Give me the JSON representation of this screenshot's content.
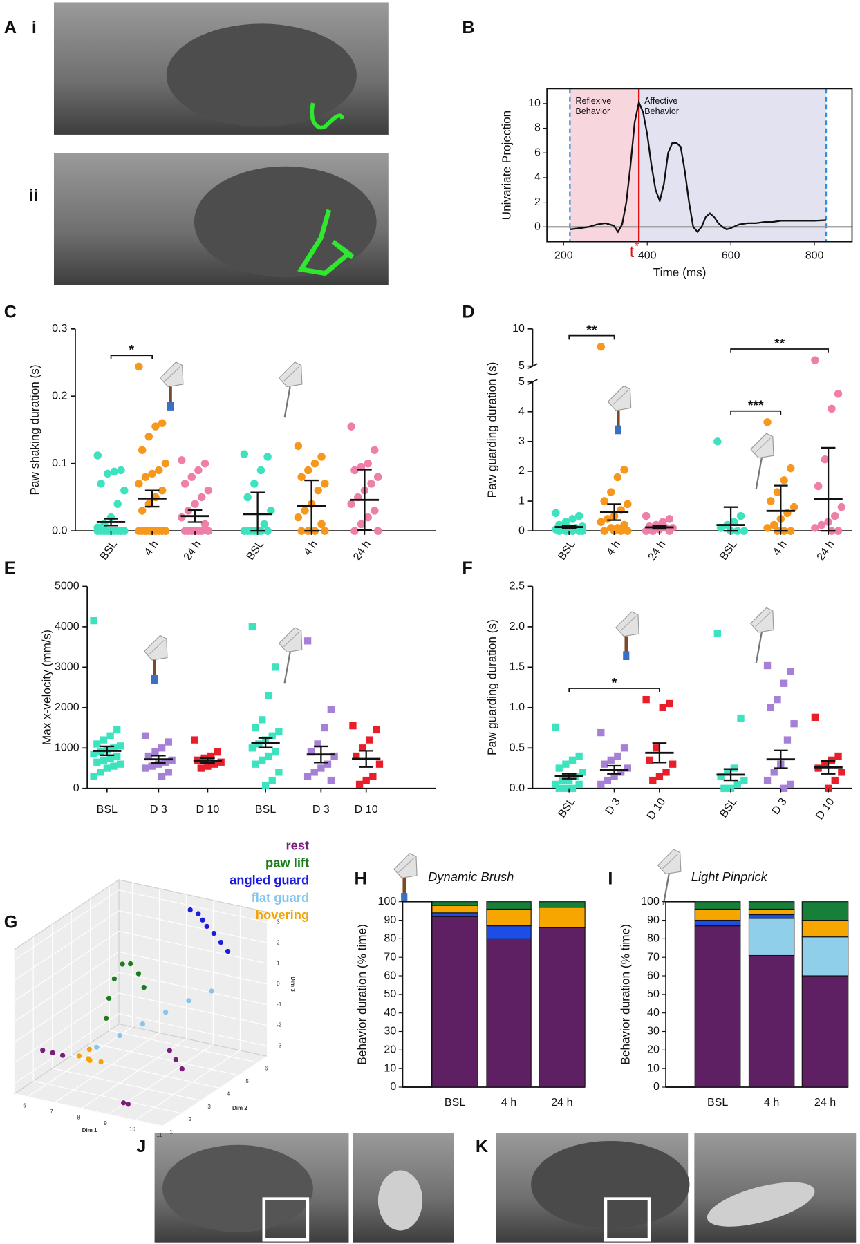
{
  "panel_labels": [
    "A",
    "i",
    "ii",
    "B",
    "C",
    "D",
    "E",
    "F",
    "G",
    "H",
    "I",
    "J",
    "K"
  ],
  "chart_data": [
    {
      "type": "line",
      "ylabel": "Univariate Projection",
      "xlabel": "Time (ms)",
      "xlim": [
        160,
        890
      ],
      "xticks": [
        200,
        400,
        600,
        800
      ],
      "ylim": [
        -1.2,
        11.2
      ],
      "yticks": [
        0,
        2,
        4,
        6,
        8,
        10
      ],
      "color": "#111111",
      "zero_line": true,
      "regions": [
        {
          "lines": [
            "Reflexive",
            "Behavior"
          ],
          "from": 215,
          "to": 380,
          "color": "#f8d6de"
        },
        {
          "lines": [
            "Affective",
            "Behavior"
          ],
          "from": 380,
          "to": 828,
          "color": "#e2e2f1"
        }
      ],
      "marker_line": {
        "x": 380,
        "label": "t",
        "superscript": "*",
        "color": "#e01010"
      },
      "x": [
        215,
        240,
        260,
        280,
        300,
        320,
        330,
        340,
        350,
        360,
        370,
        380,
        390,
        400,
        410,
        420,
        430,
        440,
        450,
        460,
        470,
        480,
        490,
        500,
        510,
        520,
        530,
        540,
        550,
        560,
        570,
        580,
        590,
        600,
        620,
        640,
        660,
        680,
        700,
        720,
        740,
        760,
        780,
        800,
        828
      ],
      "values": [
        -0.2,
        -0.1,
        0,
        0.2,
        0.3,
        0.1,
        -0.4,
        0.2,
        2,
        5,
        8.5,
        10.1,
        9.3,
        7.5,
        5,
        3,
        2.1,
        3.5,
        6,
        6.8,
        6.8,
        6.5,
        4.5,
        2,
        0,
        -0.4,
        0,
        0.8,
        1.1,
        0.8,
        0.3,
        0,
        -0.2,
        -0.1,
        0.2,
        0.3,
        0.3,
        0.4,
        0.4,
        0.5,
        0.5,
        0.5,
        0.5,
        0.5,
        0.55
      ]
    },
    {
      "type": "strip",
      "ylabel": "Paw shaking duration (s)",
      "marker": "circle",
      "ylim": [
        0,
        0.3
      ],
      "yticks": [
        {
          "value": 0,
          "label": "0.0"
        },
        {
          "value": 0.1,
          "label": "0.1"
        },
        {
          "value": 0.2,
          "label": "0.2"
        },
        {
          "value": 0.3,
          "label": "0.3"
        }
      ],
      "groups": [
        {
          "label": "BSL",
          "color": "#3de3bf",
          "mean": 0.013,
          "error": 0.005,
          "values": [
            0.112,
            0.09,
            0.088,
            0.085,
            0.07,
            0.06,
            0.04,
            0.02,
            0.01,
            0.005,
            0,
            0,
            0,
            0,
            0,
            0,
            0,
            0,
            0,
            0
          ]
        },
        {
          "label": "4 h",
          "color": "#f7981c",
          "mean": 0.048,
          "error": 0.012,
          "values": [
            0.244,
            0.16,
            0.155,
            0.14,
            0.12,
            0.1,
            0.09,
            0.085,
            0.08,
            0.07,
            0.06,
            0.05,
            0.04,
            0.03,
            0,
            0,
            0,
            0,
            0,
            0,
            0,
            0,
            0,
            0
          ]
        },
        {
          "label": "24 h",
          "color": "#ee7fa9",
          "mean": 0.022,
          "error": 0.009,
          "values": [
            0.105,
            0.1,
            0.09,
            0.08,
            0.07,
            0.06,
            0.05,
            0.04,
            0.03,
            0.02,
            0.01,
            0,
            0,
            0,
            0,
            0,
            0,
            0
          ]
        },
        {
          "label": "BSL",
          "color": "#3de3bf",
          "mean": 0.025,
          "error": 0.032,
          "values": [
            0.114,
            0.11,
            0.09,
            0.07,
            0.05,
            0.03,
            0.01,
            0,
            0,
            0,
            0,
            0,
            0,
            0
          ]
        },
        {
          "label": "4 h",
          "color": "#f7981c",
          "mean": 0.037,
          "error": 0.038,
          "values": [
            0.126,
            0.11,
            0.1,
            0.09,
            0.08,
            0.07,
            0.06,
            0.04,
            0.03,
            0.02,
            0.01,
            0,
            0,
            0,
            0
          ]
        },
        {
          "label": "24 h",
          "color": "#ee7fa9",
          "mean": 0.046,
          "error": 0.045,
          "values": [
            0.155,
            0.12,
            0.1,
            0.095,
            0.09,
            0.08,
            0.07,
            0.06,
            0.05,
            0.04,
            0.03,
            0.02,
            0.01,
            0,
            0
          ]
        }
      ],
      "significance": [
        {
          "label": "*",
          "from": 0,
          "to": 1
        }
      ]
    },
    {
      "type": "strip",
      "ylabel": "Paw guarding duration (s)",
      "marker": "circle",
      "ylim": [
        0,
        5
      ],
      "yticks": [
        0,
        1,
        2,
        3,
        4,
        5
      ],
      "ylim_upper": [
        5,
        10
      ],
      "yticks_upper": [
        5,
        10
      ],
      "groups": [
        {
          "label": "BSL",
          "color": "#3de3bf",
          "mean": 0.13,
          "error": 0.04,
          "values": [
            0.6,
            0.5,
            0.4,
            0.3,
            0.2,
            0.15,
            0.1,
            0.1,
            0.05,
            0.05,
            0,
            0,
            0,
            0,
            0
          ]
        },
        {
          "label": "4 h",
          "color": "#f7981c",
          "mean": 0.63,
          "error": 0.27,
          "values": [
            7.6,
            2.05,
            1.8,
            1.3,
            1,
            0.9,
            0.7,
            0.5,
            0.4,
            0.3,
            0.2,
            0.1,
            0.1,
            0,
            0,
            0,
            0
          ]
        },
        {
          "label": "24 h",
          "color": "#ee7fa9",
          "mean": 0.12,
          "error": 0.05,
          "values": [
            0.5,
            0.4,
            0.3,
            0.2,
            0.15,
            0.1,
            0.1,
            0.05,
            0,
            0,
            0
          ]
        },
        {
          "label": "BSL",
          "color": "#3de3bf",
          "mean": 0.2,
          "error": 0.6,
          "values": [
            3,
            0.5,
            0.3,
            0.2,
            0.1,
            0,
            0,
            0
          ]
        },
        {
          "label": "4 h",
          "color": "#f7981c",
          "mean": 0.67,
          "error": 0.85,
          "values": [
            3.65,
            2.1,
            1.7,
            1.3,
            1,
            0.8,
            0.6,
            0.4,
            0.2,
            0.1,
            0,
            0,
            0
          ]
        },
        {
          "label": "24 h",
          "color": "#ee7fa9",
          "mean": 1.07,
          "error": 1.72,
          "values": [
            5.8,
            4.6,
            4.1,
            2.4,
            1.5,
            0.8,
            0.5,
            0.3,
            0.2,
            0.1,
            0,
            0
          ]
        }
      ],
      "significance": [
        {
          "label": "**",
          "from": 0,
          "to": 1
        },
        {
          "label": "***",
          "from": 3,
          "to": 4
        },
        {
          "label": "**",
          "from": 3,
          "to": 5
        }
      ]
    },
    {
      "type": "strip",
      "ylabel": "Max x-velocity (mm/s)",
      "marker": "square",
      "ylim": [
        0,
        5000
      ],
      "yticks": [
        0,
        1000,
        2000,
        3000,
        4000,
        5000
      ],
      "groups": [
        {
          "label": "BSL",
          "color": "#3de3bf",
          "mean": 930,
          "error": 110,
          "values": [
            4150,
            1450,
            1300,
            1200,
            1100,
            1050,
            1000,
            950,
            900,
            850,
            800,
            750,
            700,
            650,
            600,
            550,
            500,
            400,
            300
          ]
        },
        {
          "label": "D 3",
          "color": "#a67fd6",
          "mean": 720,
          "error": 90,
          "values": [
            1300,
            1150,
            1000,
            900,
            800,
            700,
            650,
            600,
            550,
            500,
            400,
            300
          ]
        },
        {
          "label": "D 10",
          "color": "#e81e2a",
          "mean": 690,
          "error": 60,
          "values": [
            1200,
            900,
            800,
            750,
            700,
            650,
            600,
            550,
            500
          ]
        },
        {
          "label": "BSL",
          "color": "#3de3bf",
          "mean": 1130,
          "error": 120,
          "values": [
            4000,
            3000,
            2300,
            1700,
            1500,
            1400,
            1300,
            1200,
            1100,
            1000,
            900,
            800,
            700,
            600,
            400,
            200,
            80
          ]
        },
        {
          "label": "D 3",
          "color": "#a67fd6",
          "mean": 840,
          "error": 200,
          "values": [
            3650,
            1950,
            1500,
            1100,
            900,
            800,
            600,
            500,
            400,
            300,
            200
          ]
        },
        {
          "label": "D 10",
          "color": "#e81e2a",
          "mean": 730,
          "error": 200,
          "values": [
            1550,
            1450,
            1200,
            1000,
            800,
            600,
            300,
            200,
            100
          ]
        }
      ],
      "significance": []
    },
    {
      "type": "strip",
      "ylabel": "Paw guarding duration (s)",
      "marker": "square",
      "ylim": [
        0,
        2.5
      ],
      "yticks": [
        {
          "value": 0,
          "label": "0.0"
        },
        {
          "value": 0.5,
          "label": "0.5"
        },
        {
          "value": 1,
          "label": "1.0"
        },
        {
          "value": 1.5,
          "label": "1.5"
        },
        {
          "value": 2,
          "label": "2.0"
        },
        {
          "value": 2.5,
          "label": "2.5"
        }
      ],
      "groups": [
        {
          "label": "BSL",
          "color": "#3de3bf",
          "mean": 0.15,
          "error": 0.03,
          "values": [
            0.76,
            0.4,
            0.35,
            0.3,
            0.25,
            0.2,
            0.15,
            0.1,
            0.1,
            0.05,
            0.05,
            0,
            0,
            0
          ]
        },
        {
          "label": "D 3",
          "color": "#a67fd6",
          "mean": 0.23,
          "error": 0.05,
          "values": [
            0.69,
            0.5,
            0.4,
            0.35,
            0.3,
            0.25,
            0.2,
            0.15,
            0.1,
            0.05
          ]
        },
        {
          "label": "D 10",
          "color": "#e81e2a",
          "mean": 0.44,
          "error": 0.12,
          "values": [
            1.1,
            1.05,
            1,
            0.5,
            0.35,
            0.3,
            0.2,
            0.15,
            0.1
          ]
        },
        {
          "label": "BSL",
          "color": "#3de3bf",
          "mean": 0.17,
          "error": 0.07,
          "values": [
            1.92,
            0.87,
            0.25,
            0.2,
            0.15,
            0.1,
            0.05,
            0,
            0
          ]
        },
        {
          "label": "D 3",
          "color": "#a67fd6",
          "mean": 0.36,
          "error": 0.11,
          "values": [
            1.52,
            1.45,
            1.3,
            1.1,
            1,
            0.8,
            0.6,
            0.3,
            0.2,
            0.1,
            0.05,
            0
          ]
        },
        {
          "label": "D 10",
          "color": "#e81e2a",
          "mean": 0.26,
          "error": 0.08,
          "values": [
            0.88,
            0.4,
            0.35,
            0.3,
            0.25,
            0.2,
            0.1,
            0
          ]
        }
      ],
      "significance": [
        {
          "label": "*",
          "from": 0,
          "to": 2
        }
      ]
    },
    {
      "type": "scatter3d",
      "xlabel": "Dim 1",
      "ylabel": "Dim 2",
      "zlabel": "Dim 3",
      "xlim": [
        5.5,
        11
      ],
      "xticks": [
        6,
        7,
        8,
        9,
        10,
        11
      ],
      "ylim": [
        1,
        6.5
      ],
      "yticks": [
        1,
        2,
        3,
        4,
        5,
        6
      ],
      "zlim": [
        -3.5,
        3.5
      ],
      "zticks": [
        -3,
        -2,
        -1,
        0,
        1,
        2,
        3
      ],
      "series": [
        {
          "name": "rest",
          "color": "#7a1c7e",
          "points": [
            [
              6.2,
              1.5,
              -1.5
            ],
            [
              6.5,
              1.6,
              -1.6
            ],
            [
              6.8,
              1.7,
              -1.7
            ],
            [
              9.5,
              3.5,
              -1.8
            ],
            [
              9.8,
              3.4,
              -2.1
            ],
            [
              10.1,
              3.3,
              -2.4
            ],
            [
              9.2,
              1.5,
              -3.2
            ],
            [
              9.3,
              1.6,
              -3.3
            ]
          ]
        },
        {
          "name": "paw lift",
          "color": "#1a7d1a",
          "points": [
            [
              7.5,
              3,
              -0.5
            ],
            [
              7.6,
              3,
              0.5
            ],
            [
              7.8,
              3,
              1.5
            ],
            [
              8.1,
              3,
              2.3
            ],
            [
              8.4,
              3,
              2.4
            ],
            [
              8.7,
              3,
              2
            ],
            [
              8.9,
              3,
              1.4
            ]
          ]
        },
        {
          "name": "angled guard",
          "color": "#1c1ce0",
          "points": [
            [
              8.5,
              6,
              3.2
            ],
            [
              8.8,
              6,
              3.1
            ],
            [
              9.1,
              5.8,
              3
            ],
            [
              9.4,
              5.6,
              2.9
            ],
            [
              9.8,
              5.4,
              2.8
            ],
            [
              10.2,
              5.2,
              2.6
            ],
            [
              10.6,
              5,
              2.4
            ]
          ]
        },
        {
          "name": "flat guard",
          "color": "#86c6ea",
          "points": [
            [
              7.5,
              2.5,
              -1.6
            ],
            [
              8,
              3,
              -1.2
            ],
            [
              8.5,
              3.5,
              -0.8
            ],
            [
              9,
              4,
              -0.4
            ],
            [
              9.5,
              4.5,
              0
            ],
            [
              10,
              5,
              0.3
            ]
          ]
        },
        {
          "name": "hovering",
          "color": "#f5a300",
          "points": [
            [
              7.2,
              2,
              -1.8
            ],
            [
              7.4,
              2.2,
              -2
            ],
            [
              7.6,
              2,
              -1.9
            ],
            [
              7.8,
              2.3,
              -2.1
            ],
            [
              7.3,
              2.4,
              -1.7
            ]
          ]
        }
      ]
    },
    {
      "type": "stacked",
      "title": "Dynamic Brush",
      "ylabel": "Behavior duration (% time)",
      "ylim": [
        0,
        100
      ],
      "yticks": [
        0,
        10,
        20,
        30,
        40,
        50,
        60,
        70,
        80,
        90,
        100
      ],
      "categories": [
        "BSL",
        "4 h",
        "24 h"
      ],
      "series": [
        {
          "color": "#5e1f63",
          "values": [
            92,
            80,
            86
          ]
        },
        {
          "color": "#1c4ee6",
          "values": [
            2,
            7,
            0
          ]
        },
        {
          "color": "#f7a600",
          "values": [
            4,
            9,
            11
          ]
        },
        {
          "color": "#16803a",
          "values": [
            2,
            4,
            3
          ]
        }
      ]
    },
    {
      "type": "stacked",
      "title": "Light Pinprick",
      "ylabel": "Behavior duration (% time)",
      "ylim": [
        0,
        100
      ],
      "yticks": [
        0,
        10,
        20,
        30,
        40,
        50,
        60,
        70,
        80,
        90,
        100
      ],
      "categories": [
        "BSL",
        "4 h",
        "24 h"
      ],
      "series": [
        {
          "color": "#5e1f63",
          "values": [
            87,
            71,
            60
          ]
        },
        {
          "color": "#8fcfea",
          "values": [
            0,
            20,
            21
          ]
        },
        {
          "color": "#1c4ee6",
          "values": [
            3,
            2,
            0
          ]
        },
        {
          "color": "#f7a600",
          "values": [
            6,
            3,
            9
          ]
        },
        {
          "color": "#16803a",
          "values": [
            4,
            4,
            10
          ]
        }
      ]
    }
  ]
}
